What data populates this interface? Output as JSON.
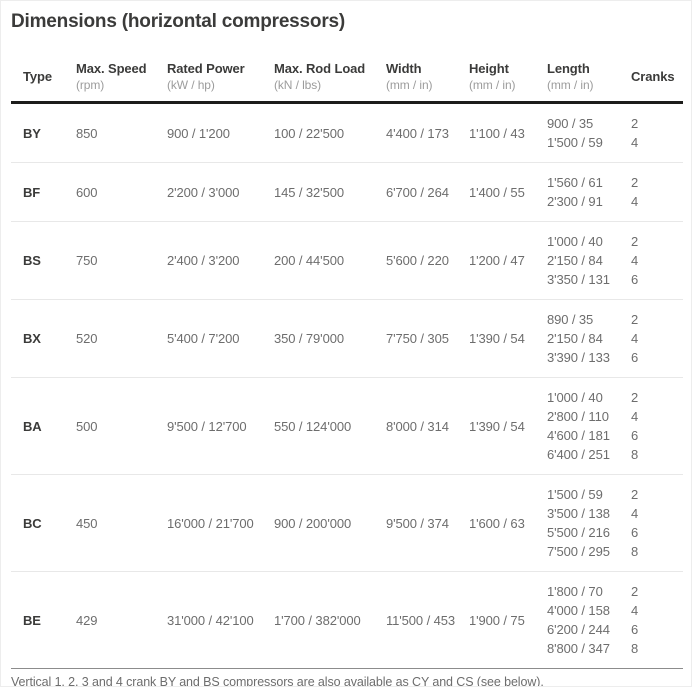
{
  "title": "Dimensions (horizontal compressors)",
  "table": {
    "columns": [
      {
        "label": "Type",
        "unit": ""
      },
      {
        "label": "Max. Speed",
        "unit": "(rpm)"
      },
      {
        "label": "Rated Power",
        "unit": "(kW / hp)"
      },
      {
        "label": "Max. Rod Load",
        "unit": "(kN / lbs)"
      },
      {
        "label": "Width",
        "unit": "(mm / in)"
      },
      {
        "label": "Height",
        "unit": "(mm / in)"
      },
      {
        "label": "Length",
        "unit": "(mm / in)"
      },
      {
        "label": "Cranks",
        "unit": ""
      }
    ],
    "rows": [
      {
        "type": "BY",
        "max_speed": "850",
        "rated_power": "900 / 1'200",
        "max_rod_load": "100 / 22'500",
        "width": "4'400 / 173",
        "height": "1'100 / 43",
        "lengths": [
          "900 / 35",
          "1'500 / 59"
        ],
        "cranks": [
          "2",
          "4"
        ]
      },
      {
        "type": "BF",
        "max_speed": "600",
        "rated_power": "2'200 / 3'000",
        "max_rod_load": "145 / 32'500",
        "width": "6'700 / 264",
        "height": "1'400 / 55",
        "lengths": [
          "1'560 / 61",
          "2'300 / 91"
        ],
        "cranks": [
          "2",
          "4"
        ]
      },
      {
        "type": "BS",
        "max_speed": "750",
        "rated_power": "2'400 / 3'200",
        "max_rod_load": "200 / 44'500",
        "width": "5'600 / 220",
        "height": "1'200 / 47",
        "lengths": [
          "1'000 / 40",
          "2'150 / 84",
          "3'350 / 131"
        ],
        "cranks": [
          "2",
          "4",
          "6"
        ]
      },
      {
        "type": "BX",
        "max_speed": "520",
        "rated_power": "5'400 / 7'200",
        "max_rod_load": "350 / 79'000",
        "width": "7'750 / 305",
        "height": "1'390 / 54",
        "lengths": [
          "890 / 35",
          "2'150 / 84",
          "3'390 / 133"
        ],
        "cranks": [
          "2",
          "4",
          "6"
        ]
      },
      {
        "type": "BA",
        "max_speed": "500",
        "rated_power": "9'500 / 12'700",
        "max_rod_load": "550 / 124'000",
        "width": "8'000 / 314",
        "height": "1'390 / 54",
        "lengths": [
          "1'000 / 40",
          "2'800 / 110",
          "4'600 / 181",
          "6'400 / 251"
        ],
        "cranks": [
          "2",
          "4",
          "6",
          "8"
        ]
      },
      {
        "type": "BC",
        "max_speed": "450",
        "rated_power": "16'000 / 21'700",
        "max_rod_load": "900 / 200'000",
        "width": "9'500 / 374",
        "height": "1'600 / 63",
        "lengths": [
          "1'500 / 59",
          "3'500 / 138",
          "5'500 / 216",
          "7'500 / 295"
        ],
        "cranks": [
          "2",
          "4",
          "6",
          "8"
        ]
      },
      {
        "type": "BE",
        "max_speed": "429",
        "rated_power": "31'000 / 42'100",
        "max_rod_load": "1'700 / 382'000",
        "width": "11'500 / 453",
        "height": "1'900 / 75",
        "lengths": [
          "1'800 / 70",
          "4'000 / 158",
          "6'200 / 244",
          "8'800 / 347"
        ],
        "cranks": [
          "2",
          "4",
          "6",
          "8"
        ]
      }
    ]
  },
  "footnote": "Vertical 1, 2, 3 and 4 crank BY and BS compressors are also available as CY and CS (see below).",
  "colors": {
    "heading_text": "#3b3b3a",
    "data_text": "#6d6d6d",
    "unit_text": "#9c9c9c",
    "header_rule": "#1d1d1b",
    "row_rule": "#e8e8e8",
    "bottom_rule": "#8c8c8c",
    "background": "#ffffff"
  }
}
